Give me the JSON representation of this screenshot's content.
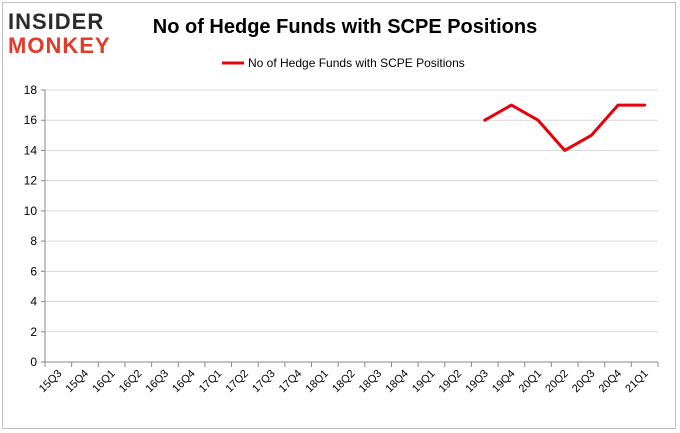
{
  "logo": {
    "line1": "INSIDER",
    "line2": "MONKEY"
  },
  "chart_data": {
    "type": "line",
    "title": "No of Hedge Funds with SCPE Positions",
    "xlabel": "",
    "ylabel": "",
    "categories": [
      "15Q3",
      "15Q4",
      "16Q1",
      "16Q2",
      "16Q3",
      "16Q4",
      "17Q1",
      "17Q2",
      "17Q3",
      "17Q4",
      "18Q1",
      "18Q2",
      "18Q3",
      "18Q4",
      "19Q1",
      "19Q2",
      "19Q3",
      "19Q4",
      "20Q1",
      "20Q2",
      "20Q3",
      "20Q4",
      "21Q1"
    ],
    "series": [
      {
        "name": "No of Hedge Funds with SCPE Positions",
        "values": [
          null,
          null,
          null,
          null,
          null,
          null,
          null,
          null,
          null,
          null,
          null,
          null,
          null,
          null,
          null,
          null,
          16,
          17,
          16,
          14,
          15,
          17,
          17
        ],
        "color": "#e8000b"
      }
    ],
    "ylim": [
      0,
      18
    ],
    "yticks": [
      0,
      2,
      4,
      6,
      8,
      10,
      12,
      14,
      16,
      18
    ],
    "grid": true,
    "legend": "top-center"
  }
}
